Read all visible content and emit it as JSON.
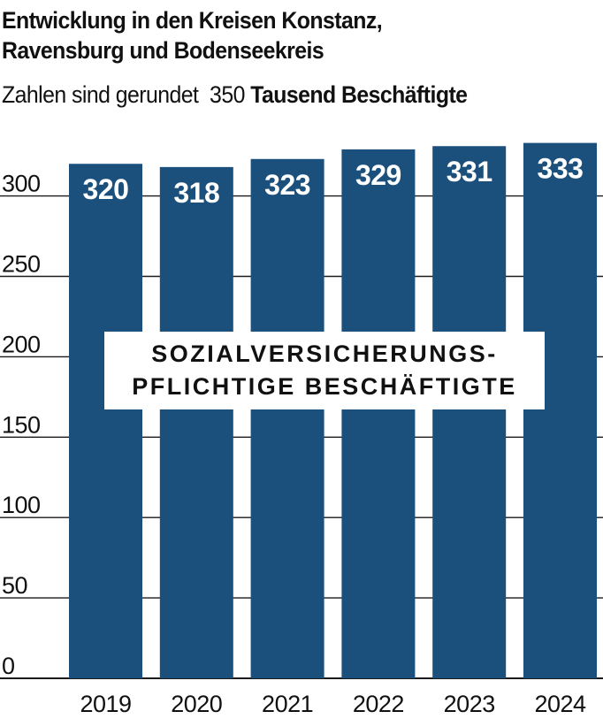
{
  "title": "Entwicklung in den Kreisen Konstanz,\nRavensburg und Bodenseekreis",
  "subtitle": {
    "note": "Zahlen sind gerundet",
    "max_tick": "350",
    "unit": "Tausend Beschäftigte"
  },
  "overlay_label": {
    "line1": "SOZIALVERSICHERUNGS-",
    "line2": "PFLICHTIGE BESCHÄFTIGTE"
  },
  "colors": {
    "bar": "#1b4f7c",
    "bar_label": "#ffffff",
    "grid": "#1a1a1a",
    "text": "#111111"
  },
  "chart_data": {
    "type": "bar",
    "categories": [
      "2019",
      "2020",
      "2021",
      "2022",
      "2023",
      "2024"
    ],
    "values": [
      320,
      318,
      323,
      329,
      331,
      333
    ],
    "value_labels": [
      "320",
      "318",
      "323",
      "329",
      "331",
      "333"
    ],
    "y_ticks": [
      0,
      50,
      100,
      150,
      200,
      250,
      300
    ],
    "ylim": [
      0,
      350
    ],
    "grid": true,
    "title": "Entwicklung in den Kreisen Konstanz, Ravensburg und Bodenseekreis",
    "ylabel": "Tausend Beschäftigte"
  }
}
